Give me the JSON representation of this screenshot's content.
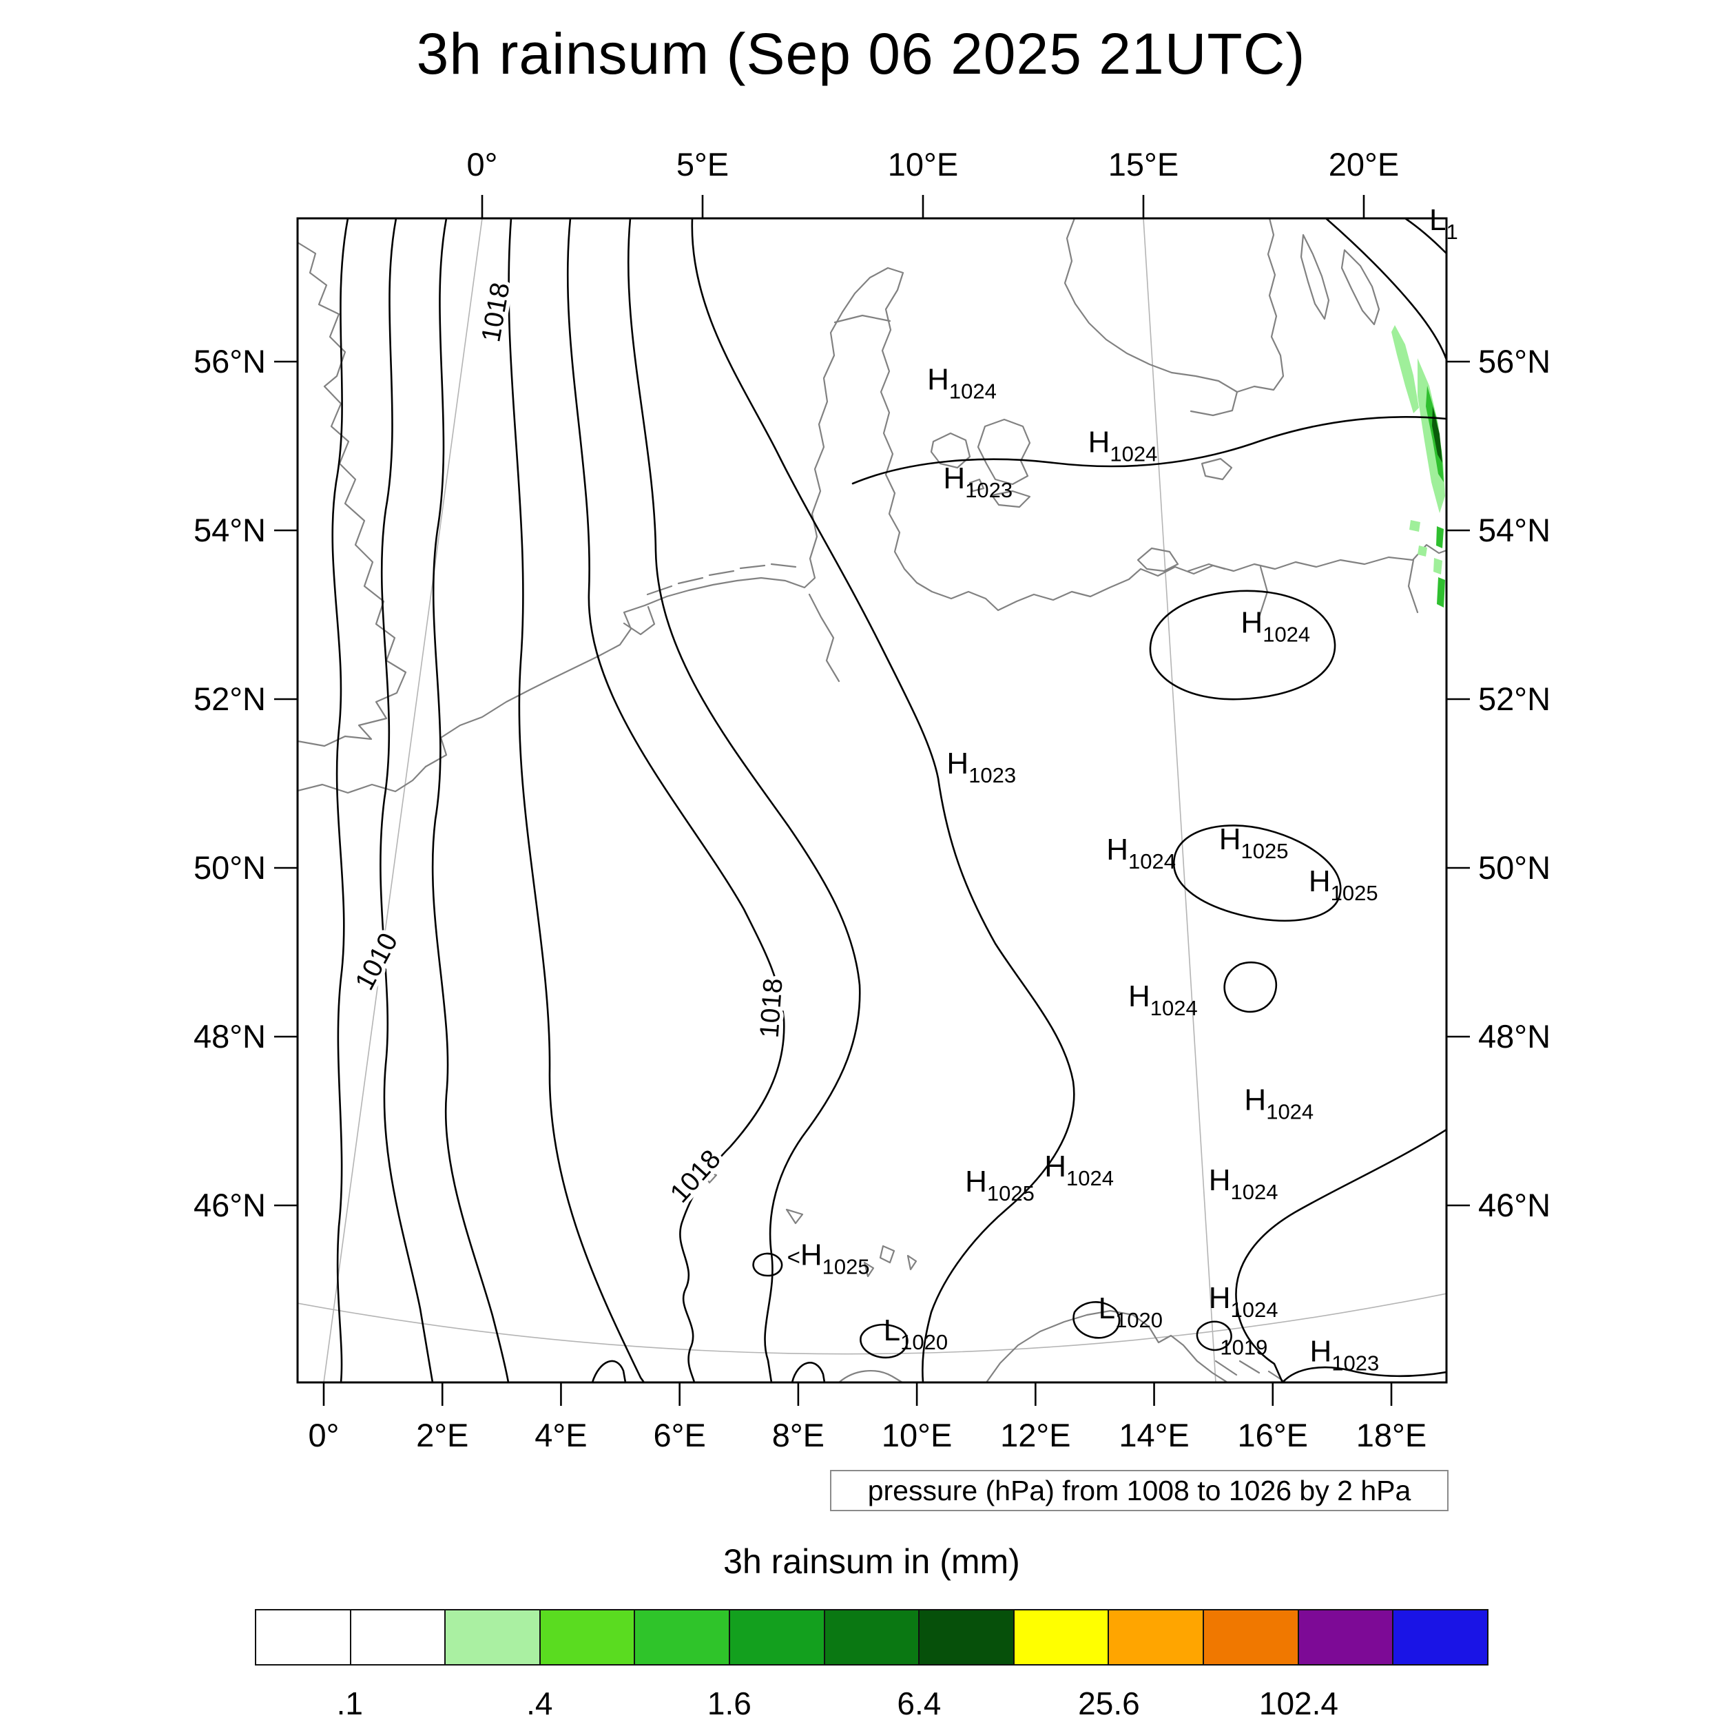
{
  "title": "3h rainsum (Sep 06 2025 21UTC)",
  "pressure_caption": "pressure (hPa) from 1008 to 1026 by 2 hPa",
  "legend": {
    "title": "3h rainsum in (mm)",
    "tick_labels": [
      ".1",
      ".4",
      "1.6",
      "6.4",
      "25.6",
      "102.4"
    ],
    "cell_colors": [
      "#ffffff",
      "#ffffff",
      "#aaf0a2",
      "#5adc20",
      "#2fc42a",
      "#13a01e",
      "#0a7812",
      "#06500a",
      "#ffff00",
      "#ffa500",
      "#f07800",
      "#7d0a96",
      "#1a14e6"
    ]
  },
  "axes": {
    "top": [
      "0°",
      "5°E",
      "10°E",
      "15°E",
      "20°E"
    ],
    "bottom": [
      "0°",
      "2°E",
      "4°E",
      "6°E",
      "8°E",
      "10°E",
      "12°E",
      "14°E",
      "16°E",
      "18°E"
    ],
    "left": [
      "56°N",
      "54°N",
      "52°N",
      "50°N",
      "48°N",
      "46°N"
    ],
    "right": [
      "56°N",
      "54°N",
      "52°N",
      "50°N",
      "48°N",
      "46°N"
    ]
  },
  "pressure_centers": [
    {
      "letter": "H",
      "value": "1024",
      "fx": 0.548,
      "fy": 0.147
    },
    {
      "letter": "H",
      "value": "1024",
      "fx": 0.688,
      "fy": 0.201
    },
    {
      "letter": "H",
      "value": "1023",
      "fx": 0.562,
      "fy": 0.232
    },
    {
      "letter": "H",
      "value": "1024",
      "fx": 0.821,
      "fy": 0.356
    },
    {
      "letter": "H",
      "value": "1023",
      "fx": 0.565,
      "fy": 0.477
    },
    {
      "letter": "H",
      "value": "1024",
      "fx": 0.704,
      "fy": 0.551
    },
    {
      "letter": "H",
      "value": "1025",
      "fx": 0.802,
      "fy": 0.542
    },
    {
      "letter": "H",
      "value": "1025",
      "fx": 0.88,
      "fy": 0.578
    },
    {
      "letter": "H",
      "value": "1024",
      "fx": 0.723,
      "fy": 0.677
    },
    {
      "letter": "H",
      "value": "1024",
      "fx": 0.824,
      "fy": 0.766
    },
    {
      "letter": "H",
      "value": "1025",
      "fx": 0.581,
      "fy": 0.836
    },
    {
      "letter": "H",
      "value": "1024",
      "fx": 0.65,
      "fy": 0.823
    },
    {
      "letter": "H",
      "value": "1024",
      "fx": 0.793,
      "fy": 0.835
    },
    {
      "letter": "H",
      "value": "1025",
      "fx": 0.426,
      "fy": 0.899,
      "prefix": "<"
    },
    {
      "letter": "L",
      "value": "1020",
      "fx": 0.51,
      "fy": 0.964
    },
    {
      "letter": "L",
      "value": "1020",
      "fx": 0.697,
      "fy": 0.945
    },
    {
      "letter": "H",
      "value": "1024",
      "fx": 0.793,
      "fy": 0.936
    },
    {
      "letter": "",
      "value": "1019",
      "fx": 0.803,
      "fy": 0.976
    },
    {
      "letter": "H",
      "value": "1023",
      "fx": 0.881,
      "fy": 0.982
    },
    {
      "letter": "L",
      "value": "1",
      "fx": 0.985,
      "fy": 0.01
    }
  ],
  "contour_labels": [
    {
      "text": "1018",
      "fx": 0.18,
      "fy": 0.082,
      "rot": -80
    },
    {
      "text": "1010",
      "fx": 0.0755,
      "fy": 0.642,
      "rot": -62
    },
    {
      "text": "1018",
      "fx": 0.42,
      "fy": 0.679,
      "rot": -86
    },
    {
      "text": "1018",
      "fx": 0.352,
      "fy": 0.828,
      "rot": -48
    }
  ]
}
